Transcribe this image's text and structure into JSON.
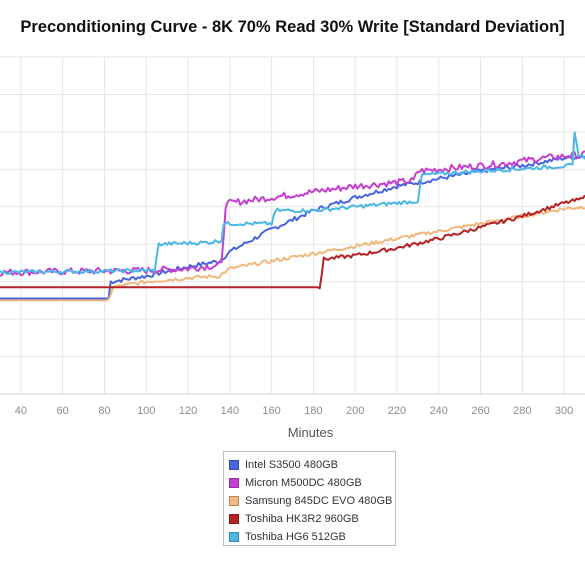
{
  "chart_data": {
    "type": "line",
    "title": "Preconditioning Curve - 8K 70% Read 30% Write [Standard Deviation]",
    "xlabel": "Minutes",
    "ylabel": "",
    "x_ticks": [
      40,
      60,
      80,
      100,
      120,
      140,
      160,
      180,
      200,
      220,
      240,
      260,
      280,
      300
    ],
    "xlim": [
      30,
      310
    ],
    "ylim": [
      0,
      9
    ],
    "grid": true,
    "legend_position": "bottom",
    "series": [
      {
        "name": "Intel S3500 480GB",
        "color": "#4a64e0",
        "points": [
          [
            30,
            2.55
          ],
          [
            82,
            2.55
          ],
          [
            83,
            3.0
          ],
          [
            100,
            3.15
          ],
          [
            120,
            3.4
          ],
          [
            135,
            3.55
          ],
          [
            140,
            3.8
          ],
          [
            160,
            4.4
          ],
          [
            180,
            4.9
          ],
          [
            200,
            5.25
          ],
          [
            220,
            5.55
          ],
          [
            240,
            5.75
          ],
          [
            260,
            5.95
          ],
          [
            280,
            6.1
          ],
          [
            300,
            6.3
          ],
          [
            310,
            6.35
          ]
        ]
      },
      {
        "name": "Micron M500DC 480GB",
        "color": "#c43ed1",
        "points": [
          [
            30,
            3.25
          ],
          [
            100,
            3.3
          ],
          [
            120,
            3.35
          ],
          [
            136,
            3.45
          ],
          [
            138,
            5.05
          ],
          [
            140,
            5.1
          ],
          [
            160,
            5.25
          ],
          [
            180,
            5.4
          ],
          [
            200,
            5.55
          ],
          [
            220,
            5.65
          ],
          [
            228,
            5.7
          ],
          [
            230,
            5.95
          ],
          [
            250,
            6.05
          ],
          [
            270,
            6.15
          ],
          [
            290,
            6.3
          ],
          [
            310,
            6.4
          ]
        ]
      },
      {
        "name": "Samsung 845DC EVO 480GB",
        "color": "#f0b87d",
        "points": [
          [
            30,
            2.5
          ],
          [
            82,
            2.5
          ],
          [
            84,
            2.85
          ],
          [
            100,
            3.0
          ],
          [
            120,
            3.1
          ],
          [
            135,
            3.15
          ],
          [
            140,
            3.35
          ],
          [
            160,
            3.55
          ],
          [
            180,
            3.75
          ],
          [
            200,
            3.95
          ],
          [
            220,
            4.15
          ],
          [
            240,
            4.35
          ],
          [
            260,
            4.55
          ],
          [
            280,
            4.75
          ],
          [
            300,
            4.95
          ],
          [
            310,
            5.0
          ]
        ]
      },
      {
        "name": "Toshiba HK3R2 960GB",
        "color": "#b52226",
        "points": [
          [
            30,
            2.85
          ],
          [
            183,
            2.85
          ],
          [
            185,
            3.6
          ],
          [
            200,
            3.7
          ],
          [
            220,
            3.9
          ],
          [
            240,
            4.15
          ],
          [
            260,
            4.45
          ],
          [
            280,
            4.75
          ],
          [
            300,
            5.1
          ],
          [
            308,
            5.2
          ],
          [
            310,
            5.35
          ]
        ]
      },
      {
        "name": "Toshiba HG6 512GB",
        "color": "#4ab7e6",
        "points": [
          [
            30,
            3.25
          ],
          [
            104,
            3.3
          ],
          [
            106,
            4.0
          ],
          [
            130,
            4.05
          ],
          [
            136,
            4.1
          ],
          [
            137,
            4.55
          ],
          [
            160,
            4.55
          ],
          [
            162,
            4.9
          ],
          [
            180,
            4.9
          ],
          [
            200,
            5.0
          ],
          [
            220,
            5.1
          ],
          [
            230,
            5.15
          ],
          [
            232,
            5.85
          ],
          [
            260,
            5.95
          ],
          [
            290,
            6.05
          ],
          [
            304,
            6.1
          ],
          [
            305,
            6.95
          ],
          [
            307,
            6.4
          ],
          [
            310,
            6.3
          ]
        ]
      }
    ]
  },
  "legend_entries": [
    "Intel S3500 480GB",
    "Micron M500DC 480GB",
    "Samsung 845DC EVO 480GB",
    "Toshiba HK3R2 960GB",
    "Toshiba HG6 512GB"
  ],
  "legend_colors": [
    "#4a64e0",
    "#c43ed1",
    "#f0b87d",
    "#b52226",
    "#4ab7e6"
  ]
}
